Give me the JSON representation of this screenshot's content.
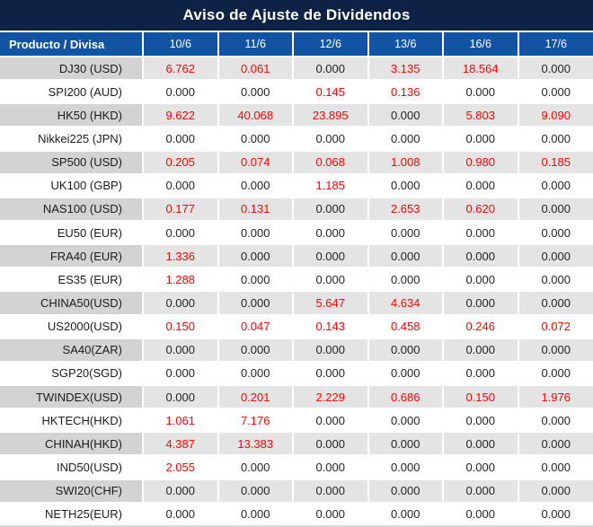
{
  "title": "Aviso de Ajuste de Dividendos",
  "table": {
    "first_column_header": "Producto / Divisa",
    "date_headers": [
      "10/6",
      "11/6",
      "12/6",
      "13/6",
      "16/6",
      "17/6"
    ],
    "rows": [
      {
        "product": "DJ30 (USD)",
        "values": [
          "6.762",
          "0.061",
          "0.000",
          "3.135",
          "18.564",
          "0.000"
        ]
      },
      {
        "product": "SPI200 (AUD)",
        "values": [
          "0.000",
          "0.000",
          "0.145",
          "0.136",
          "0.000",
          "0.000"
        ]
      },
      {
        "product": "HK50 (HKD)",
        "values": [
          "9.622",
          "40.068",
          "23.895",
          "0.000",
          "5.803",
          "9.090"
        ]
      },
      {
        "product": "Nikkei225 (JPN)",
        "values": [
          "0.000",
          "0.000",
          "0.000",
          "0.000",
          "0.000",
          "0.000"
        ]
      },
      {
        "product": "SP500 (USD)",
        "values": [
          "0.205",
          "0.074",
          "0.068",
          "1.008",
          "0.980",
          "0.185"
        ]
      },
      {
        "product": "UK100 (GBP)",
        "values": [
          "0.000",
          "0.000",
          "1.185",
          "0.000",
          "0.000",
          "0.000"
        ]
      },
      {
        "product": "NAS100 (USD)",
        "values": [
          "0.177",
          "0.131",
          "0.000",
          "2.653",
          "0.620",
          "0.000"
        ]
      },
      {
        "product": "EU50 (EUR)",
        "values": [
          "0.000",
          "0.000",
          "0.000",
          "0.000",
          "0.000",
          "0.000"
        ]
      },
      {
        "product": "FRA40 (EUR)",
        "values": [
          "1.336",
          "0.000",
          "0.000",
          "0.000",
          "0.000",
          "0.000"
        ]
      },
      {
        "product": "ES35 (EUR)",
        "values": [
          "1.288",
          "0.000",
          "0.000",
          "0.000",
          "0.000",
          "0.000"
        ]
      },
      {
        "product": "CHINA50(USD)",
        "values": [
          "0.000",
          "0.000",
          "5.647",
          "4.634",
          "0.000",
          "0.000"
        ]
      },
      {
        "product": "US2000(USD)",
        "values": [
          "0.150",
          "0.047",
          "0.143",
          "0.458",
          "0.246",
          "0.072"
        ]
      },
      {
        "product": "SA40(ZAR)",
        "values": [
          "0.000",
          "0.000",
          "0.000",
          "0.000",
          "0.000",
          "0.000"
        ]
      },
      {
        "product": "SGP20(SGD)",
        "values": [
          "0.000",
          "0.000",
          "0.000",
          "0.000",
          "0.000",
          "0.000"
        ]
      },
      {
        "product": "TWINDEX(USD)",
        "values": [
          "0.000",
          "0.201",
          "2.229",
          "0.686",
          "0.150",
          "1.976"
        ]
      },
      {
        "product": "HKTECH(HKD)",
        "values": [
          "1.061",
          "7.176",
          "0.000",
          "0.000",
          "0.000",
          "0.000"
        ]
      },
      {
        "product": "CHINAH(HKD)",
        "values": [
          "4.387",
          "13.383",
          "0.000",
          "0.000",
          "0.000",
          "0.000"
        ]
      },
      {
        "product": "IND50(USD)",
        "values": [
          "2.055",
          "0.000",
          "0.000",
          "0.000",
          "0.000",
          "0.000"
        ]
      },
      {
        "product": "SWI20(CHF)",
        "values": [
          "0.000",
          "0.000",
          "0.000",
          "0.000",
          "0.000",
          "0.000"
        ]
      },
      {
        "product": "NETH25(EUR)",
        "values": [
          "0.000",
          "0.000",
          "0.000",
          "0.000",
          "0.000",
          "0.000"
        ]
      }
    ]
  },
  "colors": {
    "title_bg": "#0e2245",
    "header_bg": "#1353a4",
    "striped_product_bg": "#d3d3d3",
    "striped_value_bg": "#e4e4e4",
    "nonzero_value": "#fe0000",
    "zero_value": "#242424",
    "grid_line": "#ffffff"
  }
}
